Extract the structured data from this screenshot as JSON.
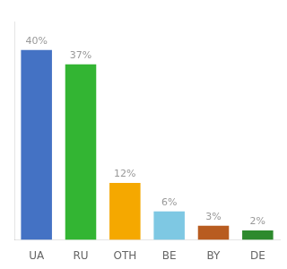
{
  "chart_data": {
    "type": "bar",
    "categories": [
      "UA",
      "RU",
      "OTH",
      "BE",
      "BY",
      "DE"
    ],
    "values": [
      40,
      37,
      12,
      6,
      3,
      2
    ],
    "value_labels": [
      "40%",
      "37%",
      "12%",
      "6%",
      "3%",
      "2%"
    ],
    "colors": [
      "#4472c4",
      "#33b533",
      "#f5a800",
      "#7ec8e3",
      "#b85c20",
      "#2d8a2d"
    ],
    "ylim": [
      0,
      46
    ],
    "grid": false,
    "data_labels": true,
    "tick_labels": "x"
  }
}
